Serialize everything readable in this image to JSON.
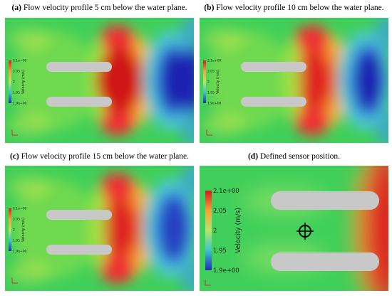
{
  "panels": [
    {
      "label": "(a)",
      "caption": "Flow velocity profile 5 cm below the water plane."
    },
    {
      "label": "(b)",
      "caption": "Flow velocity profile 10 cm below the water plane."
    },
    {
      "label": "(c)",
      "caption": "Flow velocity profile 15 cm below the water plane."
    },
    {
      "label": "(d)",
      "caption": "Defined sensor position."
    }
  ],
  "colorbar": {
    "title": "Velocity (m/s)",
    "ticks": [
      "2.1e+00",
      "2.05",
      "2",
      "1.95",
      "1.9e+00"
    ]
  }
}
